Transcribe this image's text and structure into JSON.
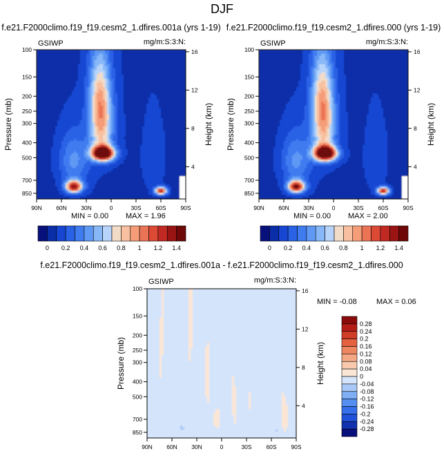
{
  "page": {
    "title": "DJF"
  },
  "palettes": {
    "field": [
      "#08107c",
      "#0a2ea8",
      "#1646d2",
      "#2a62e6",
      "#3f7cf0",
      "#5f99f4",
      "#88b8f8",
      "#b8d4fa",
      "#f2dcc8",
      "#f8c0a0",
      "#f59d78",
      "#ec7456",
      "#dc4a36",
      "#c02a22",
      "#9a1414",
      "#6e0808"
    ],
    "diff": [
      "#08107c",
      "#1232b0",
      "#1f52d8",
      "#3570ea",
      "#5590f0",
      "#7faef5",
      "#a9c8f8",
      "#d4e4fb",
      "#fbe6d6",
      "#f8c9ac",
      "#f4a884",
      "#ee8660",
      "#e4623f",
      "#d03e27",
      "#b31d16",
      "#8b0a0a"
    ]
  },
  "chart_data": [
    {
      "type": "heatmap",
      "id": "panel-left",
      "title": "f.e21.F2000climo.f19_f19.cesm2_1.dfires.001a (yrs 1-19)",
      "label_left": "GSIWP",
      "label_right": "mg/m:S:3:N:",
      "xlabel": "",
      "ylabel": "Pressure (mb)",
      "ylabel_right": "Height (km)",
      "x_ticks": [
        "90N",
        "60N",
        "30N",
        "0",
        "30S",
        "60S",
        "90S"
      ],
      "y_ticks": [
        100,
        150,
        200,
        250,
        300,
        400,
        500,
        700,
        850
      ],
      "y_ticks_right": [
        16,
        12,
        8,
        4
      ],
      "ylim": [
        100,
        925
      ],
      "min_label": "MIN =  0.00",
      "max_label": "MAX =  1.96",
      "colorbar_labels": [
        "0",
        "0.2",
        "0.4",
        "0.6",
        "0.8",
        "1",
        "1.2",
        "1.4"
      ],
      "blobs": [
        {
          "lat": 10,
          "p": 470,
          "amp": 1.75,
          "slat": 13,
          "sp": 50
        },
        {
          "lat": 12,
          "p": 320,
          "amp": 0.75,
          "slat": 14,
          "sp": 150
        },
        {
          "lat": 14,
          "p": 180,
          "amp": 0.5,
          "slat": 13,
          "sp": 110
        },
        {
          "lat": 45,
          "p": 770,
          "amp": 1.3,
          "slat": 10,
          "sp": 70
        },
        {
          "lat": 45,
          "p": 520,
          "amp": 0.35,
          "slat": 18,
          "sp": 200
        },
        {
          "lat": -60,
          "p": 820,
          "amp": 1.25,
          "slat": 7,
          "sp": 45
        },
        {
          "lat": -52,
          "p": 500,
          "amp": 0.12,
          "slat": 12,
          "sp": 250
        }
      ]
    },
    {
      "type": "heatmap",
      "id": "panel-right",
      "title": "f.e21.F2000climo.f19_f19.cesm2_1.dfires.000 (yrs 1-19)",
      "label_left": "GSIWP",
      "label_right": "mg/m:S:3:N:",
      "xlabel": "",
      "ylabel": "Pressure (mb)",
      "ylabel_right": "Height (km)",
      "x_ticks": [
        "90N",
        "60N",
        "30N",
        "0",
        "30S",
        "60S",
        "90S"
      ],
      "y_ticks": [
        100,
        150,
        200,
        250,
        300,
        400,
        500,
        700,
        850
      ],
      "y_ticks_right": [
        16,
        12,
        8,
        4
      ],
      "ylim": [
        100,
        925
      ],
      "min_label": "MIN =  0.00",
      "max_label": "MAX =  2.00",
      "colorbar_labels": [
        "0",
        "0.2",
        "0.4",
        "0.6",
        "0.8",
        "1",
        "1.2",
        "1.4"
      ],
      "blobs": [
        {
          "lat": 10,
          "p": 470,
          "amp": 1.78,
          "slat": 13,
          "sp": 50
        },
        {
          "lat": 12,
          "p": 320,
          "amp": 0.76,
          "slat": 14,
          "sp": 150
        },
        {
          "lat": 14,
          "p": 180,
          "amp": 0.5,
          "slat": 13,
          "sp": 110
        },
        {
          "lat": 45,
          "p": 770,
          "amp": 1.32,
          "slat": 10,
          "sp": 70
        },
        {
          "lat": 45,
          "p": 520,
          "amp": 0.35,
          "slat": 18,
          "sp": 200
        },
        {
          "lat": -60,
          "p": 820,
          "amp": 1.28,
          "slat": 7,
          "sp": 45
        },
        {
          "lat": -52,
          "p": 500,
          "amp": 0.12,
          "slat": 12,
          "sp": 250
        }
      ]
    },
    {
      "type": "heatmap",
      "id": "panel-diff",
      "title": "f.e21.F2000climo.f19_f19.cesm2_1.dfires.001a - f.e21.F2000climo.f19_f19.cesm2_1.dfires.000",
      "label_left": "GSIWP",
      "label_right": "mg/m:S:3:N:",
      "xlabel": "",
      "ylabel": "Pressure (mb)",
      "ylabel_right": "Height (km)",
      "x_ticks": [
        "90N",
        "60N",
        "30N",
        "0",
        "30S",
        "60S",
        "90S"
      ],
      "y_ticks": [
        100,
        150,
        200,
        250,
        300,
        400,
        500,
        700,
        850
      ],
      "y_ticks_right": [
        16,
        12,
        8,
        4
      ],
      "ylim": [
        100,
        925
      ],
      "min_label": "MIN = -0.08",
      "max_label": "MAX =  0.06",
      "colorbar_labels": [
        "0.28",
        "0.24",
        "0.2",
        "0.16",
        "0.12",
        "0.08",
        "0.04",
        "0",
        "-0.04",
        "-0.08",
        "-0.12",
        "-0.16",
        "-0.2",
        "-0.24",
        "-0.28"
      ],
      "pos_patches": [
        {
          "lat": 72,
          "p": 300,
          "amp": 0.025,
          "slat": 5,
          "sp": 300
        },
        {
          "lat": 38,
          "p": 250,
          "amp": 0.03,
          "slat": 4,
          "sp": 250
        },
        {
          "lat": 17,
          "p": 400,
          "amp": 0.025,
          "slat": 3,
          "sp": 300
        },
        {
          "lat": 5,
          "p": 700,
          "amp": 0.025,
          "slat": 4,
          "sp": 120
        },
        {
          "lat": -15,
          "p": 550,
          "amp": 0.03,
          "slat": 3,
          "sp": 260
        },
        {
          "lat": -33,
          "p": 600,
          "amp": 0.025,
          "slat": 3,
          "sp": 180
        },
        {
          "lat": -48,
          "p": 350,
          "amp": 0.025,
          "slat": 3,
          "sp": 150
        },
        {
          "lat": -75,
          "p": 650,
          "amp": 0.03,
          "slat": 5,
          "sp": 250
        }
      ],
      "neg_patches": [
        {
          "lat": 48,
          "p": 800,
          "amp": -0.06,
          "slat": 3,
          "sp": 40
        },
        {
          "lat": -10,
          "p": 820,
          "amp": -0.05,
          "slat": 2,
          "sp": 30
        },
        {
          "lat": -66,
          "p": 830,
          "amp": -0.05,
          "slat": 2,
          "sp": 35
        }
      ]
    }
  ]
}
